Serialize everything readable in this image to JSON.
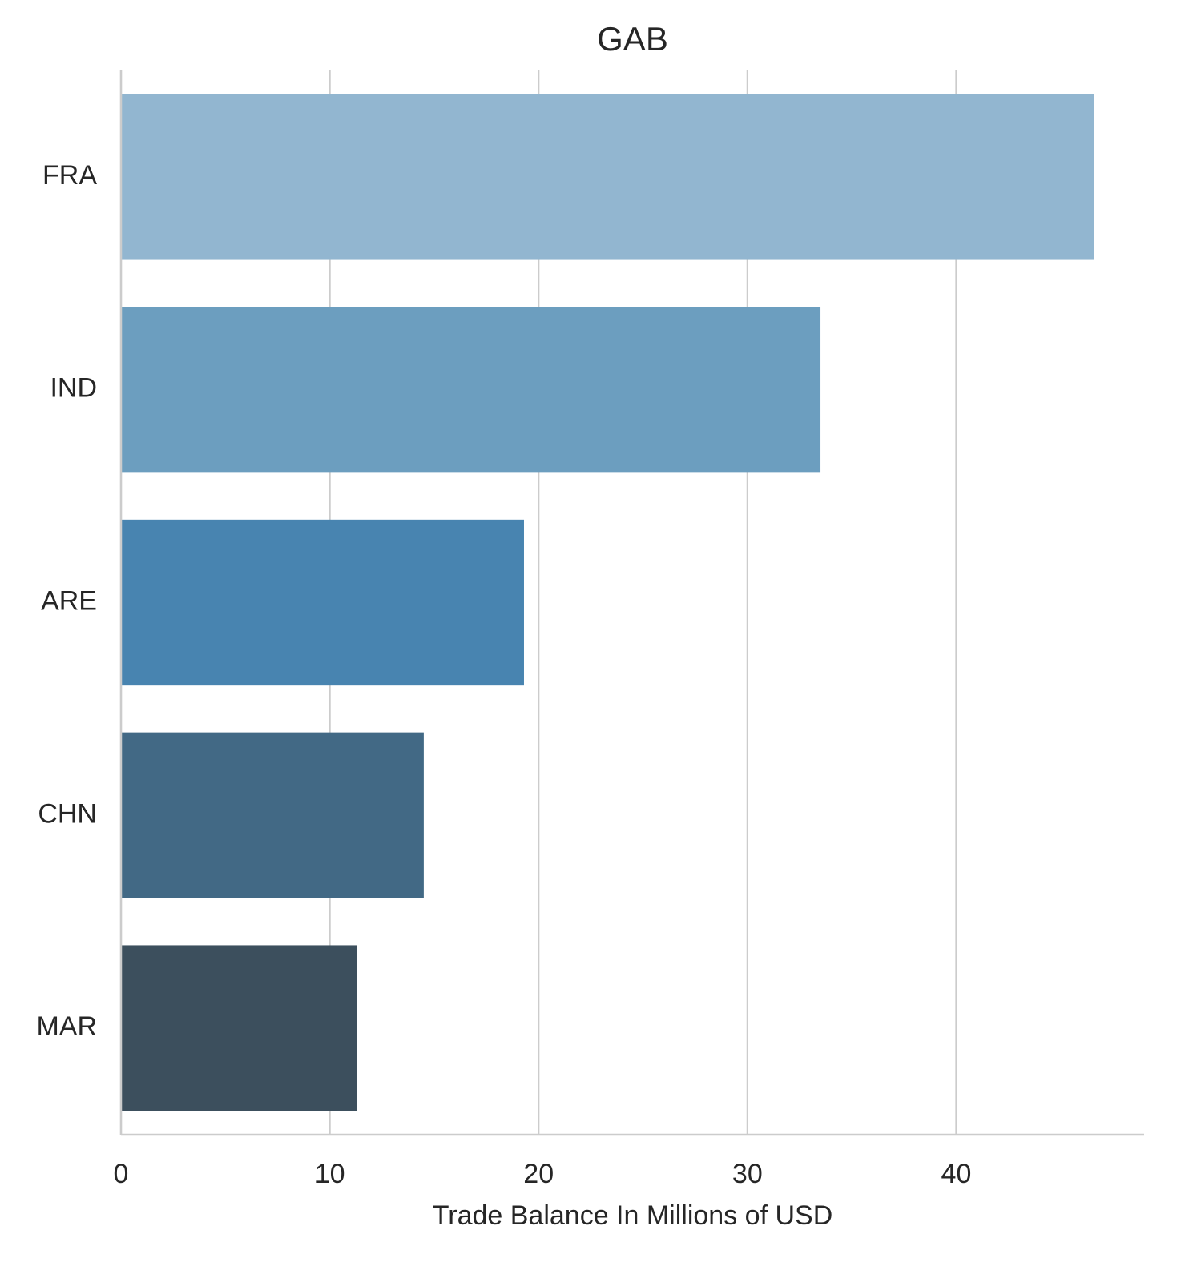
{
  "chart_data": {
    "type": "bar",
    "orientation": "horizontal",
    "title": "GAB",
    "xlabel": "Trade Balance In Millions of USD",
    "ylabel": "",
    "categories": [
      "FRA",
      "IND",
      "ARE",
      "CHN",
      "MAR"
    ],
    "values": [
      46.6,
      33.5,
      19.3,
      14.5,
      11.3
    ],
    "xlim": [
      0,
      49
    ],
    "xticks": [
      0,
      10,
      20,
      30,
      40
    ],
    "xtick_labels": [
      "0",
      "10",
      "20",
      "30",
      "40"
    ],
    "colors": [
      "#92b6d0",
      "#6c9ebf",
      "#4884b0",
      "#426985",
      "#3c4f5d"
    ],
    "grid": "vertical",
    "legend": "none"
  }
}
